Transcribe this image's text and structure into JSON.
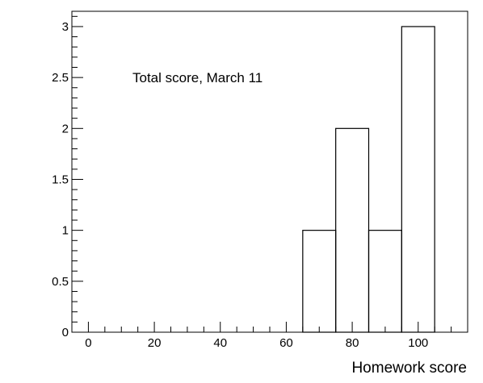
{
  "chart_data": {
    "type": "bar",
    "style": "histogram-step",
    "bin_edges": [
      65,
      75,
      85,
      95,
      105
    ],
    "values": [
      1,
      2,
      1,
      3
    ],
    "x_range": [
      -5,
      115
    ],
    "y_range": [
      0,
      3.15
    ],
    "xlabel": "Homework score",
    "ylabel": "",
    "annotation": "Total score, March 11",
    "x_ticks": [
      {
        "value": 0,
        "label": "0"
      },
      {
        "value": 20,
        "label": "20"
      },
      {
        "value": 40,
        "label": "40"
      },
      {
        "value": 60,
        "label": "60"
      },
      {
        "value": 80,
        "label": "80"
      },
      {
        "value": 100,
        "label": "100"
      }
    ],
    "y_ticks": [
      {
        "value": 0,
        "label": "0"
      },
      {
        "value": 0.5,
        "label": "0.5"
      },
      {
        "value": 1,
        "label": "1"
      },
      {
        "value": 1.5,
        "label": "1.5"
      },
      {
        "value": 2,
        "label": "2"
      },
      {
        "value": 2.5,
        "label": "2.5"
      },
      {
        "value": 3,
        "label": "3"
      }
    ],
    "grid": false,
    "colors": {
      "line": "#000000",
      "background": "#ffffff"
    }
  }
}
